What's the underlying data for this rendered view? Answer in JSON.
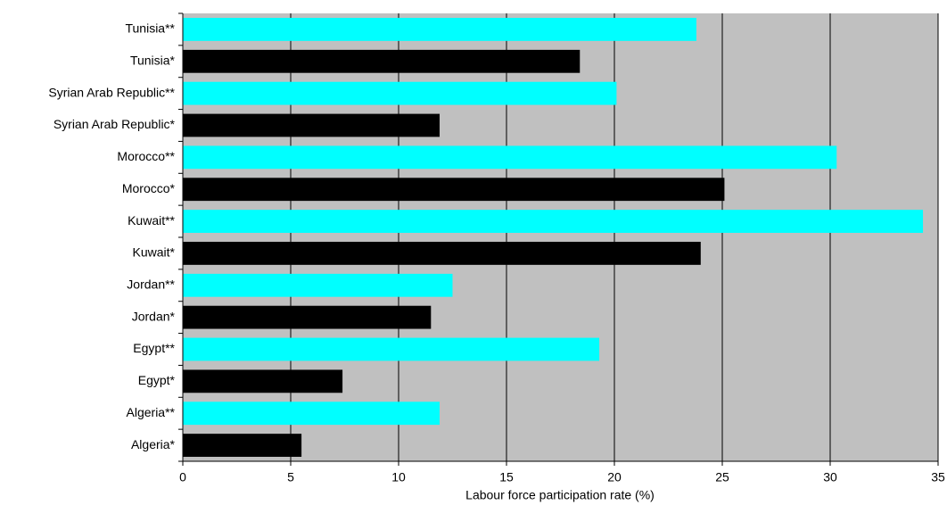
{
  "chart_data": {
    "type": "hbar",
    "x_label": "Labour force participation rate (%)",
    "categories": [
      "Tunisia**",
      "Tunisia*",
      "Syrian Arab Republic**",
      "Syrian Arab Republic*",
      "Morocco**",
      "Morocco*",
      "Kuwait**",
      "Kuwait*",
      "Jordan**",
      "Jordan*",
      "Egypt**",
      "Egypt*",
      "Algeria**",
      "Algeria*"
    ],
    "values": [
      23.8,
      18.4,
      20.1,
      11.9,
      30.3,
      25.1,
      34.3,
      24.0,
      12.5,
      11.5,
      19.3,
      7.4,
      11.9,
      5.5
    ],
    "colors": [
      "#00ffff",
      "#000000",
      "#00ffff",
      "#000000",
      "#00ffff",
      "#000000",
      "#00ffff",
      "#000000",
      "#00ffff",
      "#000000",
      "#00ffff",
      "#000000",
      "#00ffff",
      "#000000"
    ],
    "xlim": [
      0,
      35
    ],
    "xticks": [
      0,
      5,
      10,
      15,
      20,
      25,
      30,
      35
    ],
    "grid": true,
    "background": "#c0c0c0"
  }
}
